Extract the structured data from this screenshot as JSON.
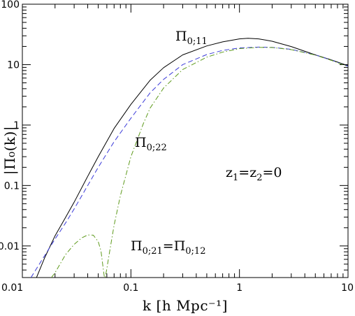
{
  "chart_data": {
    "type": "line",
    "xlabel": "k [h Mpc⁻¹]",
    "ylabel": "|Π₀(k)|",
    "xscale": "log",
    "yscale": "log",
    "xlim": [
      0.01,
      10
    ],
    "ylim": [
      0.003,
      100
    ],
    "grid": false,
    "x_ticks": [
      {
        "value": 0.01,
        "label": "0.01"
      },
      {
        "value": 0.1,
        "label": "0.1"
      },
      {
        "value": 1,
        "label": "1"
      },
      {
        "value": 10,
        "label": "10"
      }
    ],
    "y_ticks": [
      {
        "value": 0.01,
        "label": "0.01"
      },
      {
        "value": 0.1,
        "label": "0.1"
      },
      {
        "value": 1,
        "label": "1"
      },
      {
        "value": 10,
        "label": "10"
      },
      {
        "value": 100,
        "label": "100"
      }
    ],
    "series": [
      {
        "id": "pi11",
        "label_main": "Π",
        "label_sub": "0;11",
        "color": "#000000",
        "dash": "solid",
        "x": [
          0.0135,
          0.016,
          0.02,
          0.025,
          0.03,
          0.04,
          0.05,
          0.07,
          0.1,
          0.15,
          0.2,
          0.3,
          0.5,
          0.7,
          1.0,
          1.2,
          1.5,
          2.0,
          3.0,
          5.0,
          7.0,
          10.0
        ],
        "y": [
          0.003,
          0.0063,
          0.0147,
          0.0296,
          0.053,
          0.142,
          0.3,
          0.88,
          2.2,
          5.5,
          8.9,
          14.5,
          20.4,
          23.8,
          26.7,
          27.3,
          26.7,
          24.4,
          19.9,
          14.5,
          12.0,
          9.6
        ]
      },
      {
        "id": "pi22",
        "label_main": "Π",
        "label_sub": "0;22",
        "color": "#3b3bd9",
        "dash": "dashed",
        "x": [
          0.012,
          0.015,
          0.02,
          0.025,
          0.03,
          0.04,
          0.05,
          0.07,
          0.1,
          0.15,
          0.2,
          0.3,
          0.5,
          0.7,
          1.0,
          1.5,
          2.0,
          3.0,
          5.0,
          7.0,
          10.0
        ],
        "y": [
          0.003,
          0.0057,
          0.013,
          0.024,
          0.041,
          0.1,
          0.2,
          0.53,
          1.3,
          3.4,
          5.7,
          10.0,
          14.7,
          17.2,
          18.9,
          19.5,
          19.3,
          17.9,
          14.5,
          11.9,
          9.4
        ]
      },
      {
        "id": "pi21",
        "label_main": "Π",
        "label_sub": "0;21",
        "label_main_2": "Π",
        "label_sub_2": "0;12",
        "label_sep": "=",
        "color": "#5e9a1c",
        "dash": "dashdot",
        "x": [
          0.0185,
          0.02,
          0.025,
          0.03,
          0.035,
          0.04,
          0.045,
          0.05,
          0.053,
          0.0555,
          0.057,
          0.058,
          0.06,
          0.063,
          0.07,
          0.08,
          0.1,
          0.13,
          0.15,
          0.2,
          0.3,
          0.5,
          0.7,
          1.0,
          1.5,
          2.0,
          3.0,
          5.0,
          7.0,
          10.0
        ],
        "y": [
          0.003,
          0.0036,
          0.0072,
          0.0106,
          0.0135,
          0.0152,
          0.0151,
          0.0118,
          0.0083,
          0.0043,
          0.003,
          0.003,
          0.0042,
          0.0072,
          0.022,
          0.068,
          0.3,
          1.05,
          1.9,
          4.1,
          8.3,
          13.3,
          16.1,
          18.4,
          19.3,
          19.2,
          17.7,
          14.4,
          11.8,
          9.3
        ]
      }
    ],
    "annotations": {
      "z_label": {
        "z": "z",
        "sub1": "1",
        "eq": "=",
        "sub2": "2",
        "rest": "=0"
      }
    }
  }
}
